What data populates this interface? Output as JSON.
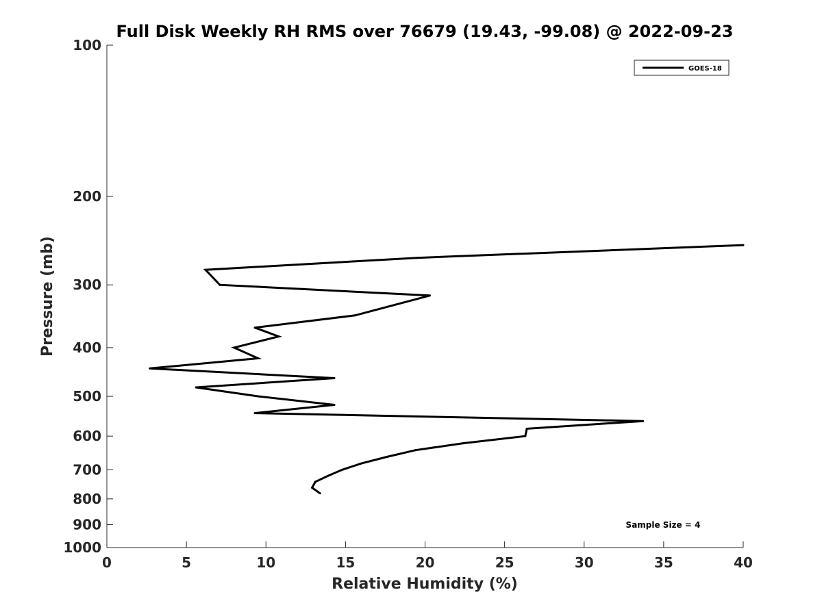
{
  "chart_data": {
    "type": "line",
    "title": "Full Disk Weekly RH RMS over 76679 (19.43, -99.08) @ 2022-09-23",
    "xlabel": "Relative Humidity (%)",
    "ylabel": "Pressure (mb)",
    "xlim": [
      0,
      40
    ],
    "ylim": [
      100,
      1000
    ],
    "yscale": "log",
    "y_reversed": true,
    "grid": false,
    "legend_position": "top-right",
    "x_ticks": [
      "0",
      "5",
      "10",
      "15",
      "20",
      "25",
      "30",
      "35",
      "40"
    ],
    "x_tick_values": [
      0,
      5,
      10,
      15,
      20,
      25,
      30,
      35,
      40
    ],
    "y_ticks": [
      "100",
      "200",
      "300",
      "400",
      "500",
      "600",
      "700",
      "800",
      "900",
      "1000"
    ],
    "y_tick_values": [
      100,
      200,
      300,
      400,
      500,
      600,
      700,
      800,
      900,
      1000
    ],
    "annotation": "Sample Size = 4",
    "series": [
      {
        "name": "GOES-18",
        "color": "#000000",
        "x": [
          40.0,
          19.5,
          6.2,
          7.1,
          20.3,
          15.6,
          9.3,
          10.8,
          8.0,
          9.5,
          2.7,
          14.3,
          5.6,
          9.5,
          14.3,
          9.3,
          33.7,
          26.4,
          26.3,
          22.4,
          19.4,
          17.6,
          16.0,
          14.8,
          13.9,
          13.1,
          12.9,
          13.4
        ],
        "y": [
          250,
          265,
          280,
          300,
          315,
          345,
          365,
          380,
          400,
          420,
          440,
          460,
          480,
          500,
          520,
          540,
          560,
          580,
          600,
          620,
          640,
          660,
          680,
          700,
          720,
          740,
          760,
          780
        ]
      }
    ]
  }
}
